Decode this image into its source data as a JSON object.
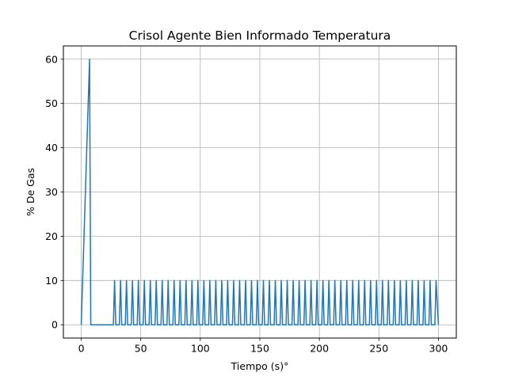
{
  "chart_data": {
    "type": "line",
    "title": "Crisol Agente Bien Informado Temperatura",
    "xlabel": "Tiempo (s)°",
    "ylabel": "% De Gas",
    "xlim": [
      -15,
      315
    ],
    "ylim": [
      -3,
      63
    ],
    "grid": true,
    "line_color": "#1f77b4",
    "x_ticks": [
      0,
      50,
      100,
      150,
      200,
      250,
      300
    ],
    "y_ticks": [
      0,
      10,
      20,
      30,
      40,
      50,
      60
    ],
    "series": [
      {
        "points": [
          [
            0,
            0
          ],
          [
            7,
            60
          ],
          [
            8,
            0
          ],
          [
            27,
            0
          ],
          [
            28,
            10
          ],
          [
            29,
            0
          ],
          [
            32,
            0
          ],
          [
            33,
            10
          ],
          [
            34,
            0
          ],
          [
            37,
            0
          ],
          [
            38,
            10
          ],
          [
            39,
            0
          ],
          [
            42,
            0
          ],
          [
            43,
            10
          ],
          [
            44,
            0
          ],
          [
            47,
            0
          ],
          [
            48,
            10
          ],
          [
            49,
            0
          ],
          [
            52,
            0
          ],
          [
            53,
            10
          ],
          [
            54,
            0
          ],
          [
            57,
            0
          ],
          [
            58,
            10
          ],
          [
            59,
            0
          ],
          [
            62,
            0
          ],
          [
            63,
            10
          ],
          [
            64,
            0
          ],
          [
            67,
            0
          ],
          [
            68,
            10
          ],
          [
            69,
            0
          ],
          [
            72,
            0
          ],
          [
            73,
            10
          ],
          [
            74,
            0
          ],
          [
            77,
            0
          ],
          [
            78,
            10
          ],
          [
            79,
            0
          ],
          [
            82,
            0
          ],
          [
            83,
            10
          ],
          [
            84,
            0
          ],
          [
            87,
            0
          ],
          [
            88,
            10
          ],
          [
            89,
            0
          ],
          [
            92,
            0
          ],
          [
            93,
            10
          ],
          [
            94,
            0
          ],
          [
            97,
            0
          ],
          [
            98,
            10
          ],
          [
            99,
            0
          ],
          [
            102,
            0
          ],
          [
            103,
            10
          ],
          [
            104,
            0
          ],
          [
            107,
            0
          ],
          [
            108,
            10
          ],
          [
            109,
            0
          ],
          [
            112,
            0
          ],
          [
            113,
            10
          ],
          [
            114,
            0
          ],
          [
            117,
            0
          ],
          [
            118,
            10
          ],
          [
            119,
            0
          ],
          [
            122,
            0
          ],
          [
            123,
            10
          ],
          [
            124,
            0
          ],
          [
            127,
            0
          ],
          [
            128,
            10
          ],
          [
            129,
            0
          ],
          [
            132,
            0
          ],
          [
            133,
            10
          ],
          [
            134,
            0
          ],
          [
            137,
            0
          ],
          [
            138,
            10
          ],
          [
            139,
            0
          ],
          [
            142,
            0
          ],
          [
            143,
            10
          ],
          [
            144,
            0
          ],
          [
            147,
            0
          ],
          [
            148,
            10
          ],
          [
            149,
            0
          ],
          [
            152,
            0
          ],
          [
            153,
            10
          ],
          [
            154,
            0
          ],
          [
            157,
            0
          ],
          [
            158,
            10
          ],
          [
            159,
            0
          ],
          [
            162,
            0
          ],
          [
            163,
            10
          ],
          [
            164,
            0
          ],
          [
            167,
            0
          ],
          [
            168,
            10
          ],
          [
            169,
            0
          ],
          [
            172,
            0
          ],
          [
            173,
            10
          ],
          [
            174,
            0
          ],
          [
            177,
            0
          ],
          [
            178,
            10
          ],
          [
            179,
            0
          ],
          [
            182,
            0
          ],
          [
            183,
            10
          ],
          [
            184,
            0
          ],
          [
            187,
            0
          ],
          [
            188,
            10
          ],
          [
            189,
            0
          ],
          [
            192,
            0
          ],
          [
            193,
            10
          ],
          [
            194,
            0
          ],
          [
            197,
            0
          ],
          [
            198,
            10
          ],
          [
            199,
            0
          ],
          [
            202,
            0
          ],
          [
            203,
            10
          ],
          [
            204,
            0
          ],
          [
            207,
            0
          ],
          [
            208,
            10
          ],
          [
            209,
            0
          ],
          [
            212,
            0
          ],
          [
            213,
            10
          ],
          [
            214,
            0
          ],
          [
            217,
            0
          ],
          [
            218,
            10
          ],
          [
            219,
            0
          ],
          [
            222,
            0
          ],
          [
            223,
            10
          ],
          [
            224,
            0
          ],
          [
            227,
            0
          ],
          [
            228,
            10
          ],
          [
            229,
            0
          ],
          [
            232,
            0
          ],
          [
            233,
            10
          ],
          [
            234,
            0
          ],
          [
            237,
            0
          ],
          [
            238,
            10
          ],
          [
            239,
            0
          ],
          [
            242,
            0
          ],
          [
            243,
            10
          ],
          [
            244,
            0
          ],
          [
            247,
            0
          ],
          [
            248,
            10
          ],
          [
            249,
            0
          ],
          [
            252,
            0
          ],
          [
            253,
            10
          ],
          [
            254,
            0
          ],
          [
            257,
            0
          ],
          [
            258,
            10
          ],
          [
            259,
            0
          ],
          [
            262,
            0
          ],
          [
            263,
            10
          ],
          [
            264,
            0
          ],
          [
            267,
            0
          ],
          [
            268,
            10
          ],
          [
            269,
            0
          ],
          [
            272,
            0
          ],
          [
            273,
            10
          ],
          [
            274,
            0
          ],
          [
            277,
            0
          ],
          [
            278,
            10
          ],
          [
            279,
            0
          ],
          [
            282,
            0
          ],
          [
            283,
            10
          ],
          [
            284,
            0
          ],
          [
            287,
            0
          ],
          [
            288,
            10
          ],
          [
            289,
            0
          ],
          [
            292,
            0
          ],
          [
            293,
            10
          ],
          [
            294,
            0
          ],
          [
            297,
            0
          ],
          [
            298,
            10
          ],
          [
            300,
            0
          ]
        ]
      }
    ]
  }
}
